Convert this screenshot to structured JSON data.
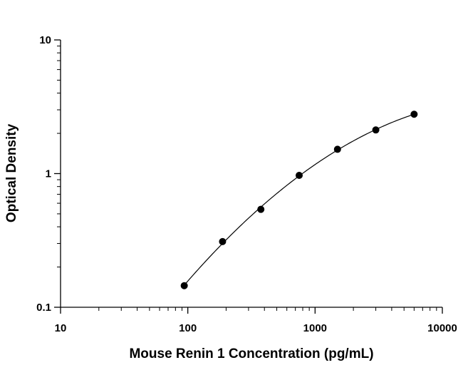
{
  "chart_data": {
    "type": "scatter",
    "title": "",
    "xlabel": "Mouse Renin 1 Concentration (pg/mL)",
    "ylabel": "Optical Density",
    "xscale": "log",
    "yscale": "log",
    "xlim": [
      10,
      10000
    ],
    "ylim": [
      0.1,
      10
    ],
    "x_ticks": [
      "10",
      "100",
      "1000",
      "10000"
    ],
    "y_ticks": [
      "0.1",
      "1",
      "10"
    ],
    "grid": false,
    "legend": "none",
    "series": [
      {
        "x": [
          93.75,
          187.5,
          375,
          750,
          1500,
          3000,
          6000
        ],
        "y": [
          0.145,
          0.31,
          0.54,
          0.97,
          1.52,
          2.12,
          2.78
        ]
      }
    ],
    "fit_curve": true,
    "colors": {
      "points": "#000000",
      "curve": "#000000",
      "axes": "#000000"
    }
  }
}
